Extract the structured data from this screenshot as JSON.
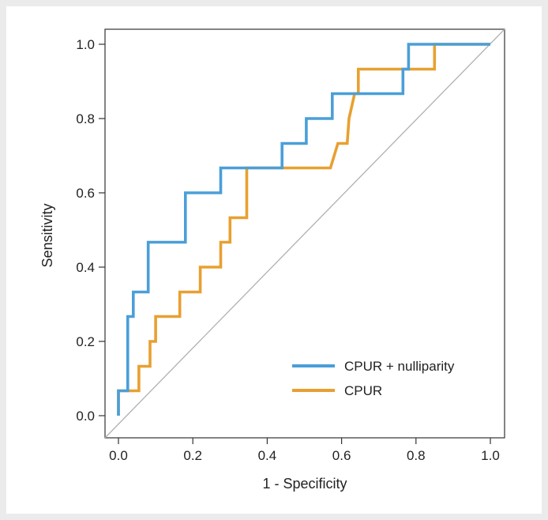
{
  "chart_data": {
    "type": "line",
    "title": "",
    "xlabel": "1 - Specificity",
    "ylabel": "Sensitivity",
    "xlim": [
      0,
      1
    ],
    "ylim": [
      0,
      1
    ],
    "x_ticks": [
      "0.0",
      "0.2",
      "0.4",
      "0.6",
      "0.8",
      "1.0"
    ],
    "y_ticks": [
      "0.0",
      "0.2",
      "0.4",
      "0.6",
      "0.8",
      "1.0"
    ],
    "legend_position": "bottom-right",
    "reference_line": {
      "name": "chance",
      "points": [
        [
          0,
          0
        ],
        [
          1,
          1
        ]
      ],
      "color": "#b0b0b0"
    },
    "series": [
      {
        "name": "CPUR + nulliparity",
        "color": "#4a9fd8",
        "points": [
          [
            0,
            0
          ],
          [
            0,
            0.067
          ],
          [
            0.025,
            0.067
          ],
          [
            0.025,
            0.267
          ],
          [
            0.04,
            0.267
          ],
          [
            0.04,
            0.333
          ],
          [
            0.08,
            0.333
          ],
          [
            0.08,
            0.467
          ],
          [
            0.18,
            0.467
          ],
          [
            0.18,
            0.6
          ],
          [
            0.275,
            0.6
          ],
          [
            0.275,
            0.667
          ],
          [
            0.44,
            0.667
          ],
          [
            0.44,
            0.733
          ],
          [
            0.505,
            0.733
          ],
          [
            0.505,
            0.8
          ],
          [
            0.575,
            0.8
          ],
          [
            0.575,
            0.867
          ],
          [
            0.765,
            0.867
          ],
          [
            0.765,
            0.933
          ],
          [
            0.78,
            0.933
          ],
          [
            0.78,
            1.0
          ],
          [
            1.0,
            1.0
          ]
        ]
      },
      {
        "name": "CPUR",
        "color": "#e8a030",
        "points": [
          [
            0,
            0
          ],
          [
            0,
            0.067
          ],
          [
            0.055,
            0.067
          ],
          [
            0.055,
            0.133
          ],
          [
            0.085,
            0.133
          ],
          [
            0.085,
            0.2
          ],
          [
            0.1,
            0.2
          ],
          [
            0.1,
            0.267
          ],
          [
            0.165,
            0.267
          ],
          [
            0.165,
            0.333
          ],
          [
            0.22,
            0.333
          ],
          [
            0.22,
            0.4
          ],
          [
            0.275,
            0.4
          ],
          [
            0.275,
            0.467
          ],
          [
            0.3,
            0.467
          ],
          [
            0.3,
            0.533
          ],
          [
            0.345,
            0.533
          ],
          [
            0.345,
            0.667
          ],
          [
            0.57,
            0.667
          ],
          [
            0.59,
            0.733
          ],
          [
            0.615,
            0.733
          ],
          [
            0.62,
            0.8
          ],
          [
            0.635,
            0.867
          ],
          [
            0.645,
            0.867
          ],
          [
            0.645,
            0.933
          ],
          [
            0.85,
            0.933
          ],
          [
            0.85,
            1.0
          ],
          [
            1.0,
            1.0
          ]
        ]
      }
    ]
  }
}
